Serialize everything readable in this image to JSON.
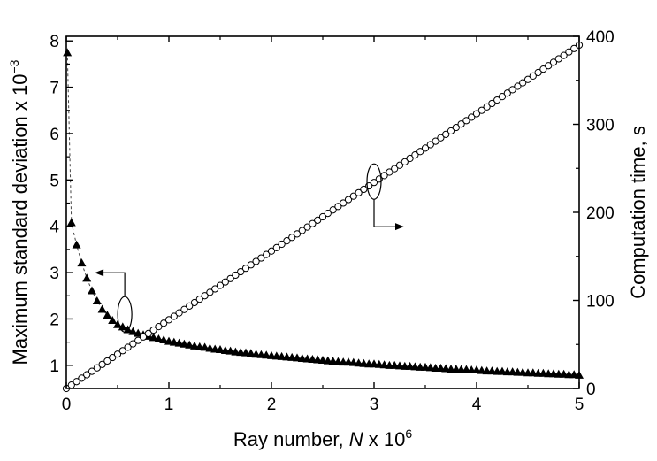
{
  "chart_data": {
    "type": "scatter",
    "title": "",
    "x_axis": {
      "label_prefix": "Ray number, ",
      "label_variable": "N",
      "label_suffix": " x 10",
      "label_exponent": "6",
      "range": [
        0,
        5
      ],
      "ticks": [
        "0",
        "1",
        "2",
        "3",
        "4",
        "5"
      ]
    },
    "y_left": {
      "label_prefix": "Maximum standard deviation x 10",
      "label_exponent": "−3",
      "range": [
        0.5,
        8.1
      ],
      "ticks": [
        "1",
        "2",
        "3",
        "4",
        "5",
        "6",
        "7",
        "8"
      ]
    },
    "y_right": {
      "label": "Computation time, s",
      "range": [
        0,
        400
      ],
      "ticks": [
        "0",
        "100",
        "200",
        "300",
        "400"
      ]
    },
    "grid": false,
    "n_points": 101,
    "x_step": 0.05,
    "series": [
      {
        "marker": "filled-triangle",
        "axis": "left",
        "connector": "dashed",
        "x": [
          0.01,
          0.05,
          0.1,
          0.15,
          0.2,
          0.25,
          0.3,
          0.35,
          0.4,
          0.45,
          0.5,
          0.55,
          0.6,
          0.65,
          0.7,
          0.75,
          0.8,
          0.85,
          0.9,
          0.95,
          1.0,
          1.05,
          1.1,
          1.15,
          1.2,
          1.25,
          1.3,
          1.35,
          1.4,
          1.45,
          1.5,
          1.55,
          1.6,
          1.65,
          1.7,
          1.75,
          1.8,
          1.85,
          1.9,
          1.95,
          2.0,
          2.05,
          2.1,
          2.15,
          2.2,
          2.25,
          2.3,
          2.35,
          2.4,
          2.45,
          2.5,
          2.55,
          2.6,
          2.65,
          2.7,
          2.75,
          2.8,
          2.85,
          2.9,
          2.95,
          3.0,
          3.05,
          3.1,
          3.15,
          3.2,
          3.25,
          3.3,
          3.35,
          3.4,
          3.45,
          3.5,
          3.55,
          3.6,
          3.65,
          3.7,
          3.75,
          3.8,
          3.85,
          3.9,
          3.95,
          4.0,
          4.05,
          4.1,
          4.15,
          4.2,
          4.25,
          4.3,
          4.35,
          4.4,
          4.45,
          4.5,
          4.55,
          4.6,
          4.65,
          4.7,
          4.75,
          4.8,
          4.85,
          4.9,
          4.95,
          5.0
        ],
        "y": [
          7.75,
          4.08,
          3.6,
          3.21,
          2.88,
          2.61,
          2.39,
          2.21,
          2.08,
          1.97,
          1.88,
          1.83,
          1.77,
          1.73,
          1.69,
          1.66,
          1.63,
          1.6,
          1.57,
          1.55,
          1.52,
          1.5,
          1.48,
          1.46,
          1.44,
          1.42,
          1.4,
          1.39,
          1.37,
          1.35,
          1.34,
          1.32,
          1.31,
          1.29,
          1.28,
          1.27,
          1.26,
          1.24,
          1.23,
          1.22,
          1.21,
          1.2,
          1.19,
          1.18,
          1.17,
          1.16,
          1.15,
          1.14,
          1.13,
          1.12,
          1.11,
          1.1,
          1.09,
          1.08,
          1.07,
          1.07,
          1.06,
          1.05,
          1.04,
          1.03,
          1.03,
          1.02,
          1.01,
          1.0,
          1.0,
          0.99,
          0.98,
          0.98,
          0.97,
          0.96,
          0.96,
          0.95,
          0.94,
          0.94,
          0.93,
          0.92,
          0.92,
          0.91,
          0.91,
          0.9,
          0.9,
          0.89,
          0.88,
          0.88,
          0.87,
          0.87,
          0.86,
          0.86,
          0.85,
          0.85,
          0.84,
          0.84,
          0.83,
          0.83,
          0.82,
          0.82,
          0.81,
          0.81,
          0.8,
          0.8,
          0.79
        ]
      },
      {
        "marker": "open-circle",
        "axis": "right",
        "x": [
          0.0,
          0.05,
          0.1,
          0.15,
          0.2,
          0.25,
          0.3,
          0.35,
          0.4,
          0.45,
          0.5,
          0.55,
          0.6,
          0.65,
          0.7,
          0.75,
          0.8,
          0.85,
          0.9,
          0.95,
          1.0,
          1.05,
          1.1,
          1.15,
          1.2,
          1.25,
          1.3,
          1.35,
          1.4,
          1.45,
          1.5,
          1.55,
          1.6,
          1.65,
          1.7,
          1.75,
          1.8,
          1.85,
          1.9,
          1.95,
          2.0,
          2.05,
          2.1,
          2.15,
          2.2,
          2.25,
          2.3,
          2.35,
          2.4,
          2.45,
          2.5,
          2.55,
          2.6,
          2.65,
          2.7,
          2.75,
          2.8,
          2.85,
          2.9,
          2.95,
          3.0,
          3.05,
          3.1,
          3.15,
          3.2,
          3.25,
          3.3,
          3.35,
          3.4,
          3.45,
          3.5,
          3.55,
          3.6,
          3.65,
          3.7,
          3.75,
          3.8,
          3.85,
          3.9,
          3.95,
          4.0,
          4.05,
          4.1,
          4.15,
          4.2,
          4.25,
          4.3,
          4.35,
          4.4,
          4.45,
          4.5,
          4.55,
          4.6,
          4.65,
          4.7,
          4.75,
          4.8,
          4.85,
          4.9,
          4.95,
          5.0
        ],
        "y": [
          0.0,
          3.9,
          7.8,
          11.7,
          15.6,
          19.5,
          23.4,
          27.3,
          31.2,
          35.1,
          39.0,
          42.9,
          46.8,
          50.7,
          54.6,
          58.5,
          62.4,
          66.3,
          70.2,
          74.1,
          78.0,
          81.9,
          85.8,
          89.7,
          93.6,
          97.5,
          101.4,
          105.3,
          109.2,
          113.1,
          117.0,
          120.9,
          124.8,
          128.7,
          132.6,
          136.5,
          140.4,
          144.3,
          148.2,
          152.1,
          156.0,
          159.9,
          163.8,
          167.7,
          171.6,
          175.5,
          179.4,
          183.3,
          187.2,
          191.1,
          195.0,
          198.9,
          202.8,
          206.7,
          210.6,
          214.5,
          218.4,
          222.3,
          226.2,
          230.1,
          234.0,
          237.9,
          241.8,
          245.7,
          249.6,
          253.5,
          257.4,
          261.3,
          265.2,
          269.1,
          273.0,
          276.9,
          280.8,
          284.7,
          288.6,
          292.5,
          296.4,
          300.3,
          304.2,
          308.1,
          312.0,
          315.9,
          319.8,
          323.7,
          327.6,
          331.5,
          335.4,
          339.3,
          343.2,
          347.1,
          351.0,
          354.9,
          358.8,
          362.7,
          366.6,
          370.5,
          374.4,
          378.3,
          382.2,
          386.1,
          390.0
        ]
      }
    ],
    "annotations": [
      {
        "type": "ellipse-with-arrow",
        "series": 0,
        "at": [
          0.57,
          2.1
        ],
        "arrow_to": "left"
      },
      {
        "type": "ellipse-with-arrow",
        "series": 1,
        "at": [
          3.0,
          235
        ],
        "arrow_to": "right"
      }
    ]
  }
}
